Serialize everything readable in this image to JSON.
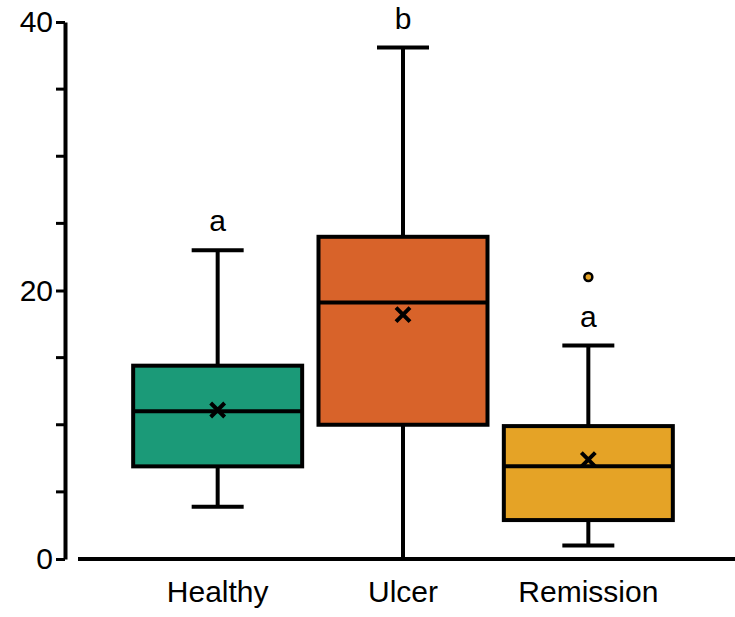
{
  "chart_data": {
    "type": "box",
    "categories": [
      "Healthy",
      "Ulcer",
      "Remission"
    ],
    "min": [
      3.9,
      0,
      1.0
    ],
    "q1": [
      6.9,
      10.0,
      2.9
    ],
    "median": [
      11.0,
      19.1,
      6.9
    ],
    "q3": [
      14.4,
      24.0,
      9.9
    ],
    "max": [
      23.0,
      38.1,
      15.9
    ],
    "mean": [
      11.1,
      18.2,
      7.4
    ],
    "outliers": [
      [],
      [],
      [
        21.0
      ]
    ],
    "annotations": [
      "a",
      "b",
      "a"
    ],
    "colors": [
      "#1b9a78",
      "#d8632a",
      "#e5a326"
    ],
    "ylim": [
      0,
      40
    ],
    "yticks": [
      0,
      20,
      40
    ],
    "minor_yticks": [
      5,
      10,
      15,
      25,
      30,
      35
    ]
  }
}
